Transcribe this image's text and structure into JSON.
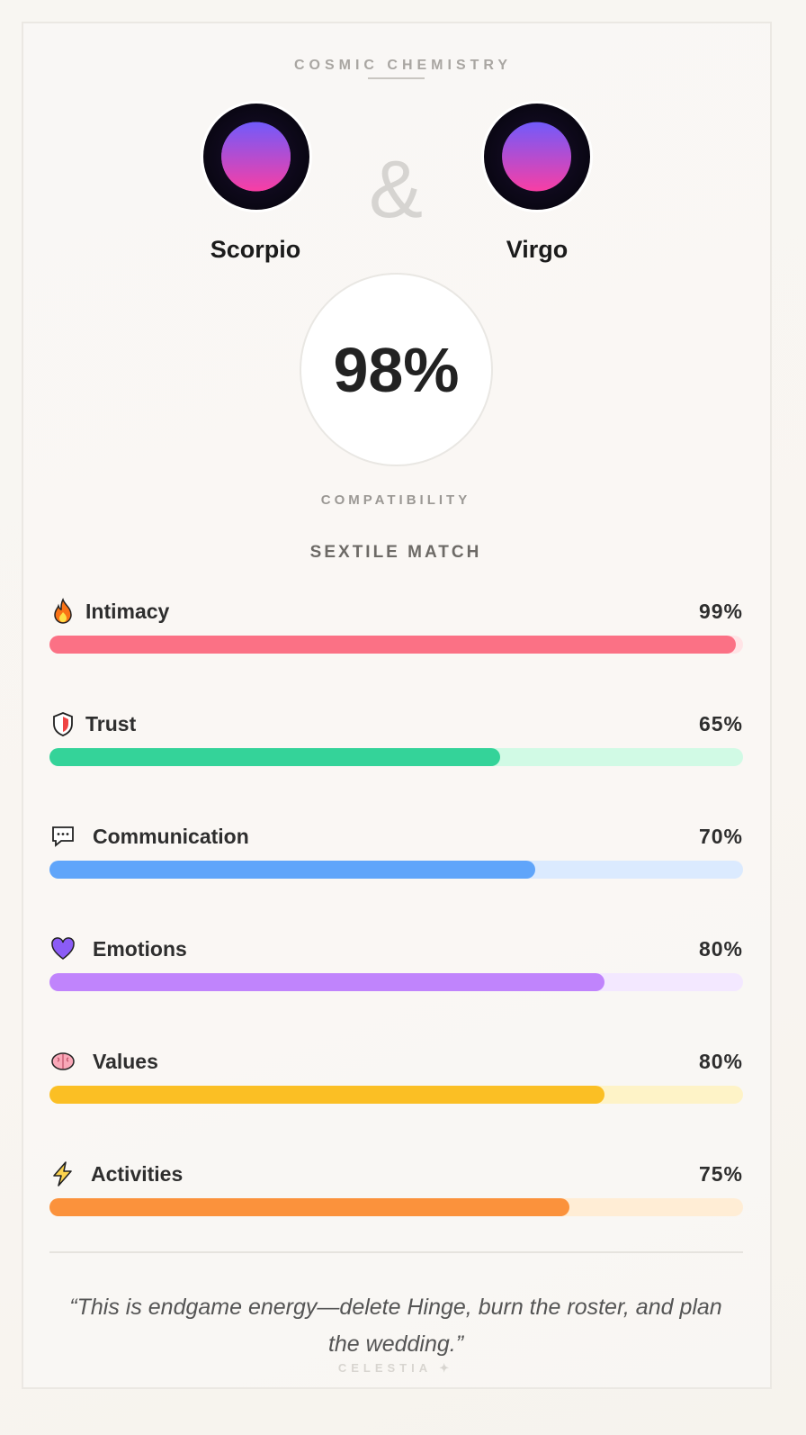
{
  "header": {
    "eyebrow": "COSMIC CHEMISTRY"
  },
  "pair": {
    "left": {
      "name": "Scorpio",
      "glyph": "♏"
    },
    "ampersand": "&",
    "right": {
      "name": "Virgo",
      "glyph": "♍"
    }
  },
  "score": {
    "value": "98%",
    "label": "COMPATIBILITY",
    "match_type": "SEXTILE MATCH"
  },
  "metrics": [
    {
      "label": "Intimacy",
      "value": "99%",
      "percent": 99,
      "icon": "fire-icon",
      "color": "#fb7185",
      "track": "#ffe4e6"
    },
    {
      "label": "Trust",
      "value": "65%",
      "percent": 65,
      "icon": "shield-icon",
      "color": "#34d399",
      "track": "#d1fae5"
    },
    {
      "label": "Communication",
      "value": "70%",
      "percent": 70,
      "icon": "speech-bubble-icon",
      "color": "#60a5fa",
      "track": "#dbeafe"
    },
    {
      "label": "Emotions",
      "value": "80%",
      "percent": 80,
      "icon": "heart-icon",
      "color": "#c084fc",
      "track": "#f3e8ff"
    },
    {
      "label": "Values",
      "value": "80%",
      "percent": 80,
      "icon": "brain-icon",
      "color": "#fbbf24",
      "track": "#fef3c7"
    },
    {
      "label": "Activities",
      "value": "75%",
      "percent": 75,
      "icon": "lightning-icon",
      "color": "#fb923c",
      "track": "#ffedd5"
    }
  ],
  "quote": "“This is endgame energy—delete Hinge, burn the roster, and plan the wedding.”",
  "brand": "CELESTIA ✦"
}
